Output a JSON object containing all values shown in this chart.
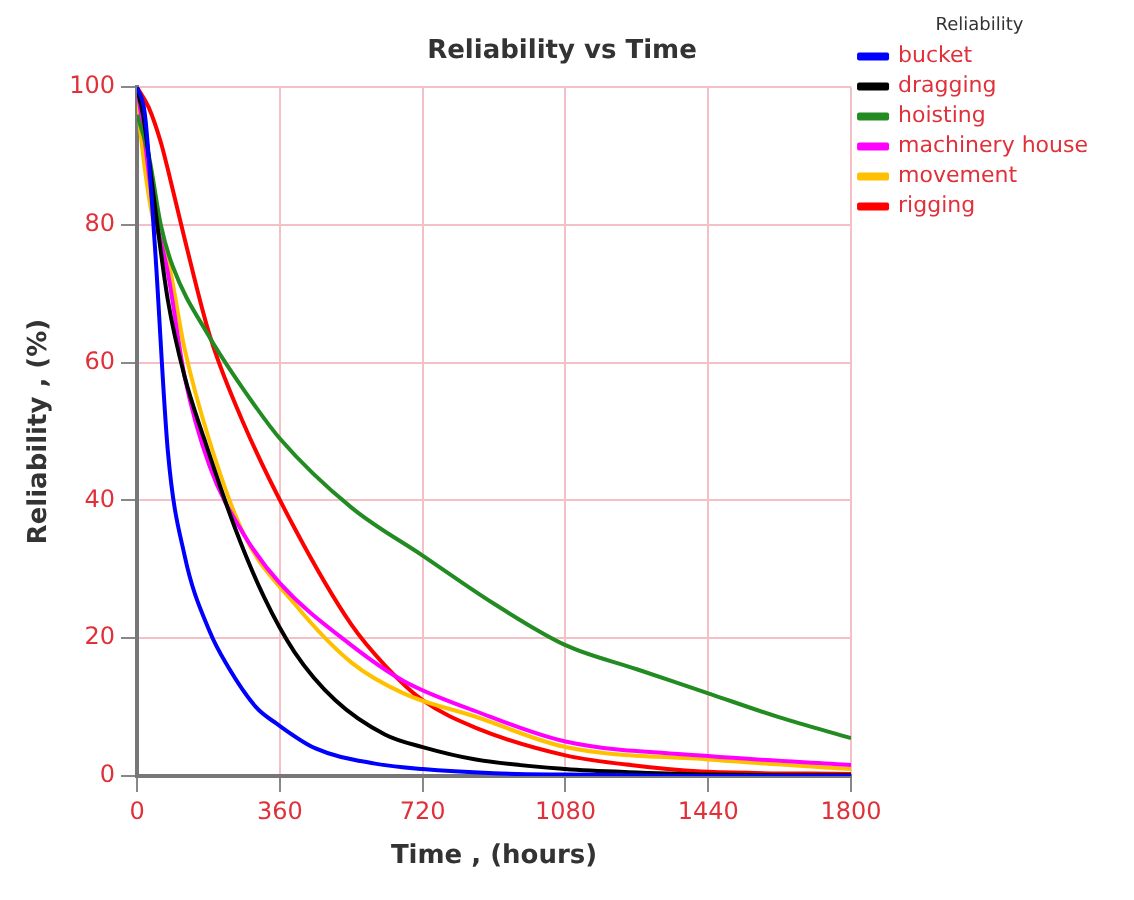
{
  "chart_data": {
    "type": "line",
    "title": "Reliability vs Time",
    "xlabel": "Time , (hours)",
    "ylabel": "Reliability , (%)",
    "legend_title": "Reliability",
    "legend": "right",
    "grid": true,
    "marker": "none",
    "line_style": "solid",
    "xlim": [
      0,
      1800
    ],
    "xticks": [
      0,
      360,
      720,
      1080,
      1440,
      1800
    ],
    "ylim": [
      0,
      100
    ],
    "yticks": [
      0,
      20,
      40,
      60,
      80,
      100
    ],
    "series": [
      {
        "name": "bucket",
        "color": "#0000ff",
        "x": [
          0,
          20,
          45,
          78,
          120,
          183,
          228,
          300,
          352,
          450,
          600,
          720,
          900,
          1080,
          1440,
          1800
        ],
        "values": [
          100,
          96,
          77,
          47,
          32,
          21,
          16,
          10,
          7.6,
          4,
          1.8,
          1,
          0.4,
          0.2,
          0,
          0
        ]
      },
      {
        "name": "dragging",
        "color": "#000000",
        "x": [
          0,
          18,
          40,
          78,
          120,
          169,
          247,
          320,
          397,
          500,
          626,
          720,
          854,
          1080,
          1260,
          1440,
          1800
        ],
        "values": [
          100,
          95,
          85,
          69,
          58,
          49,
          36,
          26,
          18,
          11,
          6,
          4.2,
          2.4,
          1,
          0.5,
          0.2,
          0.1
        ]
      },
      {
        "name": "hoisting",
        "color": "#228b22",
        "x": [
          0,
          30,
          60,
          90,
          180,
          270,
          360,
          540,
          720,
          900,
          1080,
          1260,
          1440,
          1620,
          1800
        ],
        "values": [
          96,
          90,
          80,
          74,
          64,
          56,
          49,
          39,
          32,
          25,
          19,
          15.5,
          12,
          8.5,
          5.5
        ]
      },
      {
        "name": "machinery house",
        "color": "#ff00ff",
        "x": [
          0,
          20,
          40,
          78,
          120,
          183,
          270,
          360,
          540,
          672,
          854,
          1080,
          1440,
          1800
        ],
        "values": [
          100,
          92,
          83,
          73,
          58,
          45,
          35,
          28,
          19,
          13.8,
          9.4,
          5,
          2.9,
          1.6
        ]
      },
      {
        "name": "movement",
        "color": "#ffc000",
        "x": [
          0,
          20,
          40,
          78,
          120,
          183,
          270,
          397,
          540,
          672,
          854,
          1080,
          1440,
          1800
        ],
        "values": [
          98,
          88,
          81,
          75,
          62,
          48.6,
          35,
          25,
          16.5,
          12,
          8.6,
          4.2,
          2.4,
          1
        ]
      },
      {
        "name": "rigging",
        "color": "#ff0000",
        "x": [
          0,
          30,
          60,
          78,
          120,
          183,
          270,
          397,
          540,
          626,
          720,
          854,
          1080,
          1260,
          1440,
          1800
        ],
        "values": [
          100,
          97,
          92,
          88,
          78,
          64,
          51,
          36,
          22,
          16,
          11,
          7,
          3,
          1.5,
          0.6,
          0.3
        ]
      }
    ]
  }
}
